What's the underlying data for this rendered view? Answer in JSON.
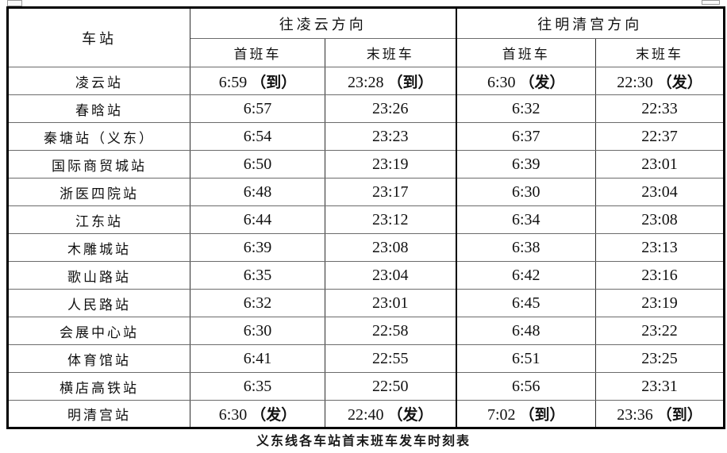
{
  "table": {
    "station_header": "车站",
    "groups": [
      {
        "label": "往凌云方向",
        "sub": [
          "首班车",
          "末班车"
        ]
      },
      {
        "label": "往明清宫方向",
        "sub": [
          "首班车",
          "末班车"
        ]
      }
    ],
    "rows": [
      {
        "station": "凌云站",
        "times": [
          "6:59（到）",
          "23:28（到）",
          "6:30（发）",
          "22:30（发）"
        ]
      },
      {
        "station": "春晗站",
        "times": [
          "6:57",
          "23:26",
          "6:32",
          "22:33"
        ]
      },
      {
        "station": "秦塘站（义东）",
        "times": [
          "6:54",
          "23:23",
          "6:37",
          "22:37"
        ]
      },
      {
        "station": "国际商贸城站",
        "times": [
          "6:50",
          "23:19",
          "6:39",
          "23:01"
        ]
      },
      {
        "station": "浙医四院站",
        "times": [
          "6:48",
          "23:17",
          "6:30",
          "23:04"
        ]
      },
      {
        "station": "江东站",
        "times": [
          "6:44",
          "23:12",
          "6:34",
          "23:08"
        ]
      },
      {
        "station": "木雕城站",
        "times": [
          "6:39",
          "23:08",
          "6:38",
          "23:13"
        ]
      },
      {
        "station": "歌山路站",
        "times": [
          "6:35",
          "23:04",
          "6:42",
          "23:16"
        ]
      },
      {
        "station": "人民路站",
        "times": [
          "6:32",
          "23:01",
          "6:45",
          "23:19"
        ]
      },
      {
        "station": "会展中心站",
        "times": [
          "6:30",
          "22:58",
          "6:48",
          "23:22"
        ]
      },
      {
        "station": "体育馆站",
        "times": [
          "6:41",
          "22:55",
          "6:51",
          "23:25"
        ]
      },
      {
        "station": "横店高铁站",
        "times": [
          "6:35",
          "22:50",
          "6:56",
          "23:31"
        ]
      },
      {
        "station": "明清宫站",
        "times": [
          "6:30（发）",
          "22:40（发）",
          "7:02（到）",
          "23:36（到）"
        ]
      }
    ],
    "caption": "义东线各车站首末班车发车时刻表"
  },
  "colors": {
    "text": "#111111",
    "outer_border": "#000000",
    "inner_h_line": "#6b6b6b",
    "inner_v_line": "#2e2e2e",
    "background": "#ffffff"
  }
}
